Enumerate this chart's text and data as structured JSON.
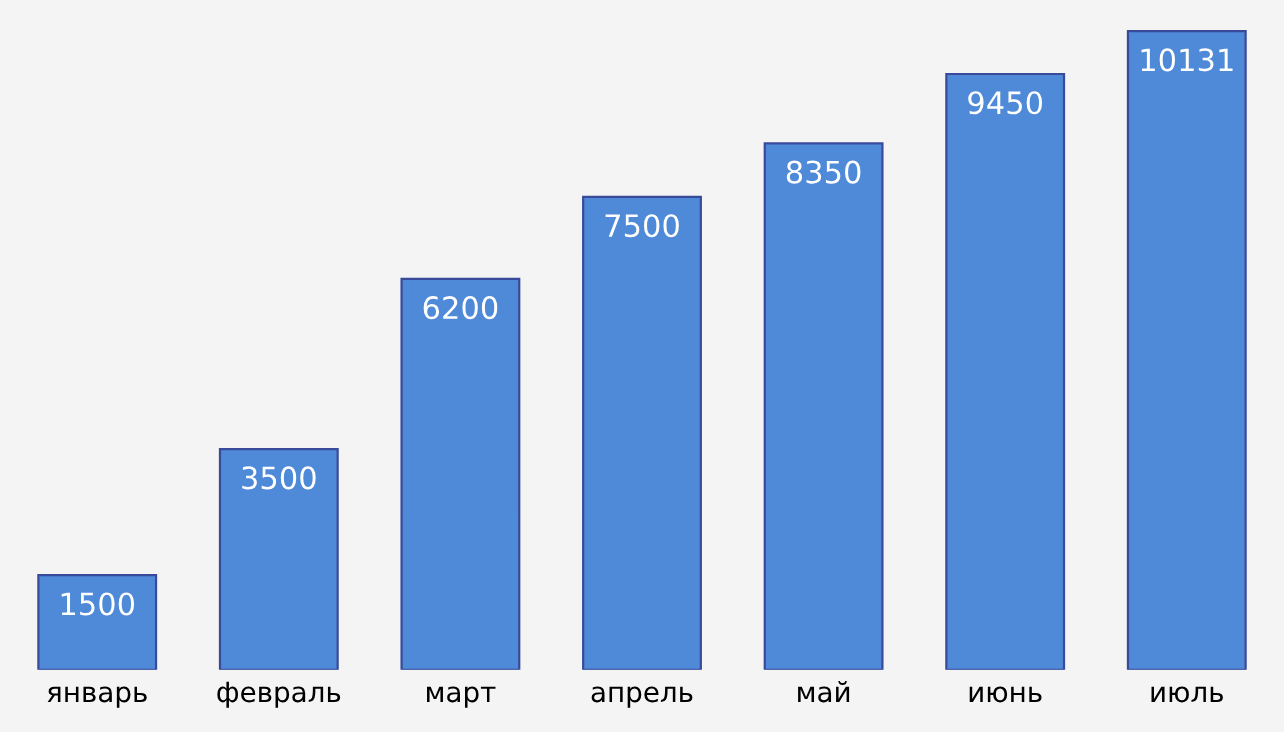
{
  "chart_data": {
    "type": "bar",
    "categories": [
      "январь",
      "февраль",
      "март",
      "апрель",
      "май",
      "июнь",
      "июль"
    ],
    "values": [
      1500,
      3500,
      6200,
      7500,
      8350,
      9450,
      10131
    ],
    "color": "#4f8ad8",
    "data_labels": true,
    "grid": false,
    "legend": false
  }
}
